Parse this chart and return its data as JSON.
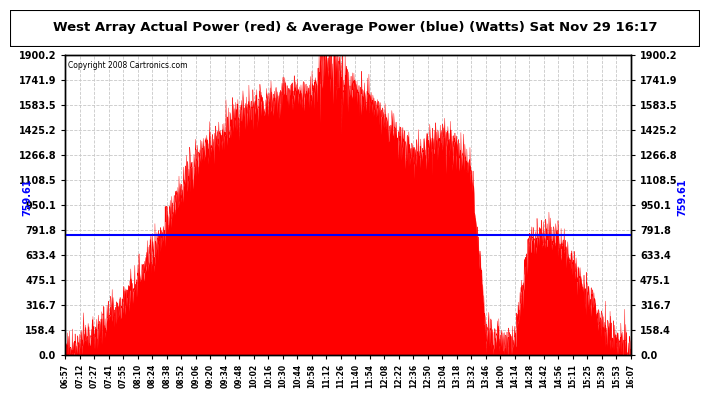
{
  "title": "West Array Actual Power (red) & Average Power (blue) (Watts) Sat Nov 29 16:17",
  "copyright": "Copyright 2008 Cartronics.com",
  "avg_power": 759.61,
  "y_max": 1900.2,
  "y_min": 0.0,
  "y_ticks": [
    0.0,
    158.4,
    316.7,
    475.1,
    633.4,
    791.8,
    950.1,
    1108.5,
    1266.8,
    1425.2,
    1583.5,
    1741.9,
    1900.2
  ],
  "x_labels": [
    "06:57",
    "07:12",
    "07:27",
    "07:41",
    "07:55",
    "08:10",
    "08:24",
    "08:38",
    "08:52",
    "09:06",
    "09:20",
    "09:34",
    "09:48",
    "10:02",
    "10:16",
    "10:30",
    "10:44",
    "10:58",
    "11:12",
    "11:26",
    "11:40",
    "11:54",
    "12:08",
    "12:22",
    "12:36",
    "12:50",
    "13:04",
    "13:18",
    "13:32",
    "13:46",
    "14:00",
    "14:14",
    "14:28",
    "14:42",
    "14:56",
    "15:11",
    "15:25",
    "15:39",
    "15:53",
    "16:07"
  ],
  "shape": [
    0.02,
    0.04,
    0.07,
    0.12,
    0.18,
    0.26,
    0.34,
    0.44,
    0.55,
    0.65,
    0.7,
    0.74,
    0.8,
    0.83,
    0.84,
    0.86,
    0.87,
    0.88,
    1.0,
    0.93,
    0.88,
    0.84,
    0.78,
    0.72,
    0.66,
    0.7,
    0.72,
    0.68,
    0.62,
    0.08,
    0.05,
    0.06,
    0.38,
    0.4,
    0.38,
    0.3,
    0.2,
    0.1,
    0.05,
    0.01
  ],
  "noise_seed": 77,
  "noise_amp": 60,
  "background_color": "#ffffff",
  "fill_color": "#ff0000",
  "line_color": "#0000ff",
  "grid_color": "#c8c8c8",
  "border_color": "#000000"
}
